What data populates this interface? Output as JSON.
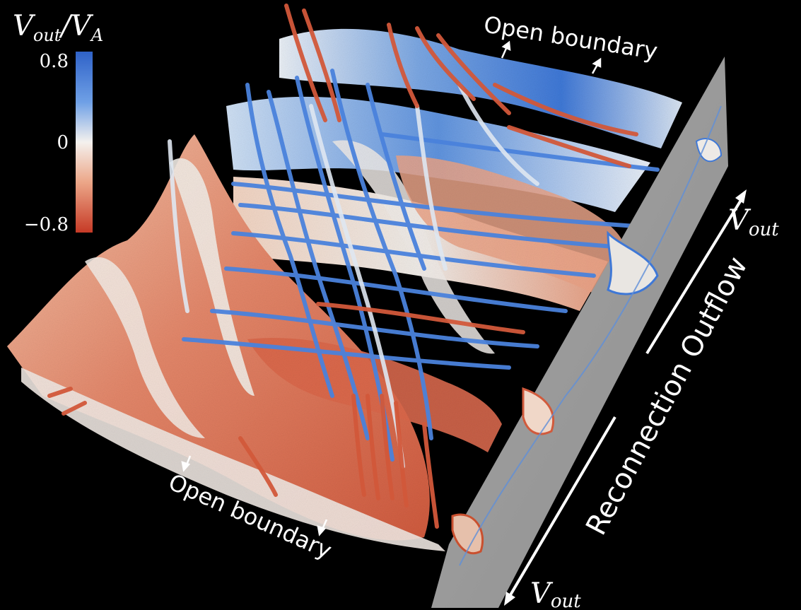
{
  "colorbar": {
    "title_main": "V",
    "title_sub1": "out",
    "title_slash": "/V",
    "title_sub2": "A",
    "ticks": [
      "0.8",
      "0",
      "−0.8"
    ],
    "colors": {
      "high": "#3b6fd4",
      "mid": "#f4f1ee",
      "low": "#c8402c"
    }
  },
  "annotations": {
    "open_boundary_top": "Open boundary",
    "open_boundary_bottom": "Open boundary",
    "reconnection_outflow": "Reconnection Outflow",
    "vout_main": "V",
    "vout_sub": "out"
  },
  "palette": {
    "background": "#000000",
    "slice_gray": "#9a9a9a",
    "blue": "#3f7ad9",
    "light_blue": "#a9c8ee",
    "white": "#eeeae6",
    "peach": "#edb79a",
    "red": "#d3573b"
  }
}
